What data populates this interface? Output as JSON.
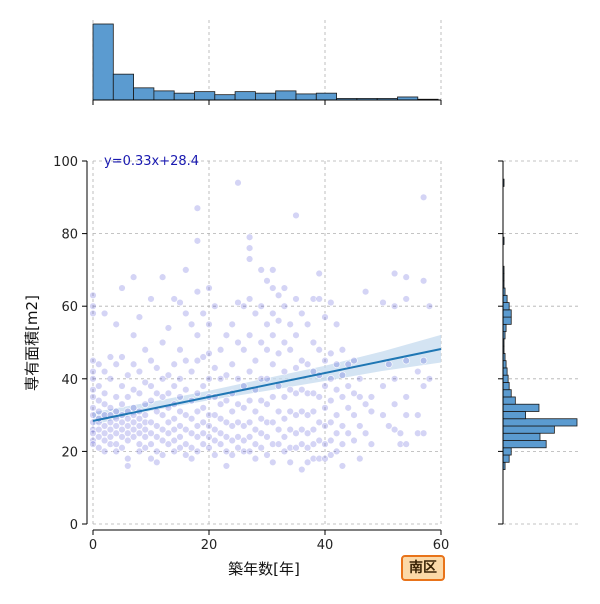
{
  "badge": "南区",
  "accent_colors": {
    "hist_fill": "#5b9bd0",
    "hist_edge": "#1a1a1a",
    "point": "#3a3ad0",
    "regression_line": "#1f77b4",
    "ci_band": "#c6dbef",
    "equation_text": "#1a1ab0",
    "badge_border": "#e8731a",
    "badge_fill": "#fbd9a8"
  },
  "chart_data": {
    "type": "scatter",
    "xlabel": "築年数[年]",
    "ylabel": "専有面積[m2]",
    "xlim": [
      0,
      60
    ],
    "ylim": [
      0,
      100
    ],
    "xticks": [
      0,
      20,
      40,
      60
    ],
    "yticks": [
      0,
      20,
      40,
      60,
      80,
      100
    ],
    "grid": true,
    "regression": {
      "label": "y=0.33x+28.4",
      "slope": 0.33,
      "intercept": 28.4,
      "ci_low": [
        [
          0,
          27.3
        ],
        [
          10,
          31.2
        ],
        [
          20,
          34.1
        ],
        [
          30,
          36.7
        ],
        [
          40,
          39.4
        ],
        [
          50,
          42.2
        ],
        [
          60,
          44.5
        ]
      ],
      "ci_high": [
        [
          0,
          30.8
        ],
        [
          10,
          33.6
        ],
        [
          20,
          36.7
        ],
        [
          30,
          40.2
        ],
        [
          40,
          43.6
        ],
        [
          50,
          47.6
        ],
        [
          60,
          52.1
        ]
      ]
    },
    "points": [
      [
        0,
        63
      ],
      [
        0,
        60
      ],
      [
        0,
        58
      ],
      [
        0,
        45
      ],
      [
        0,
        42
      ],
      [
        0,
        40
      ],
      [
        0,
        37
      ],
      [
        0,
        35
      ],
      [
        0,
        32
      ],
      [
        0,
        30
      ],
      [
        0,
        28
      ],
      [
        0,
        26
      ],
      [
        0,
        25
      ],
      [
        0,
        23
      ],
      [
        0,
        22
      ],
      [
        1,
        44
      ],
      [
        1,
        34
      ],
      [
        1,
        31
      ],
      [
        1,
        28
      ],
      [
        1,
        26
      ],
      [
        1,
        24
      ],
      [
        1,
        21
      ],
      [
        1,
        38
      ],
      [
        1,
        29
      ],
      [
        2,
        58
      ],
      [
        2,
        42
      ],
      [
        2,
        33
      ],
      [
        2,
        30
      ],
      [
        2,
        27
      ],
      [
        2,
        25
      ],
      [
        2,
        23
      ],
      [
        2,
        20
      ],
      [
        2,
        36
      ],
      [
        3,
        46
      ],
      [
        3,
        40
      ],
      [
        3,
        32
      ],
      [
        3,
        28
      ],
      [
        3,
        26
      ],
      [
        3,
        24
      ],
      [
        3,
        22
      ],
      [
        3,
        30
      ],
      [
        4,
        55
      ],
      [
        4,
        44
      ],
      [
        4,
        35
      ],
      [
        4,
        31
      ],
      [
        4,
        29
      ],
      [
        4,
        27
      ],
      [
        4,
        25
      ],
      [
        4,
        22
      ],
      [
        4,
        20
      ],
      [
        5,
        65
      ],
      [
        5,
        46
      ],
      [
        5,
        38
      ],
      [
        5,
        33
      ],
      [
        5,
        30
      ],
      [
        5,
        28
      ],
      [
        5,
        26
      ],
      [
        5,
        24
      ],
      [
        5,
        21
      ],
      [
        6,
        41
      ],
      [
        6,
        35
      ],
      [
        6,
        31
      ],
      [
        6,
        29
      ],
      [
        6,
        27
      ],
      [
        6,
        25
      ],
      [
        6,
        23
      ],
      [
        6,
        18
      ],
      [
        6,
        16
      ],
      [
        7,
        68
      ],
      [
        7,
        52
      ],
      [
        7,
        44
      ],
      [
        7,
        37
      ],
      [
        7,
        32
      ],
      [
        7,
        30
      ],
      [
        7,
        28
      ],
      [
        7,
        26
      ],
      [
        7,
        24
      ],
      [
        8,
        57
      ],
      [
        8,
        42
      ],
      [
        8,
        36
      ],
      [
        8,
        31
      ],
      [
        8,
        29
      ],
      [
        8,
        27
      ],
      [
        8,
        25
      ],
      [
        8,
        22
      ],
      [
        8,
        20
      ],
      [
        9,
        48
      ],
      [
        9,
        39
      ],
      [
        9,
        33
      ],
      [
        9,
        30
      ],
      [
        9,
        28
      ],
      [
        9,
        26
      ],
      [
        9,
        24
      ],
      [
        9,
        21
      ],
      [
        10,
        62
      ],
      [
        10,
        45
      ],
      [
        10,
        38
      ],
      [
        10,
        34
      ],
      [
        10,
        28
      ],
      [
        10,
        25
      ],
      [
        10,
        18
      ],
      [
        10,
        22
      ],
      [
        11,
        43
      ],
      [
        11,
        36
      ],
      [
        11,
        31
      ],
      [
        11,
        27
      ],
      [
        11,
        24
      ],
      [
        11,
        20
      ],
      [
        11,
        17
      ],
      [
        12,
        68
      ],
      [
        12,
        50
      ],
      [
        12,
        40
      ],
      [
        12,
        35
      ],
      [
        12,
        30
      ],
      [
        12,
        26
      ],
      [
        12,
        23
      ],
      [
        12,
        19
      ],
      [
        13,
        54
      ],
      [
        13,
        41
      ],
      [
        13,
        36
      ],
      [
        13,
        32
      ],
      [
        13,
        28
      ],
      [
        13,
        25
      ],
      [
        13,
        22
      ],
      [
        14,
        62
      ],
      [
        14,
        44
      ],
      [
        14,
        38
      ],
      [
        14,
        33
      ],
      [
        14,
        29
      ],
      [
        14,
        26
      ],
      [
        14,
        23
      ],
      [
        14,
        20
      ],
      [
        15,
        61
      ],
      [
        15,
        48
      ],
      [
        15,
        40
      ],
      [
        15,
        35
      ],
      [
        15,
        31
      ],
      [
        15,
        27
      ],
      [
        15,
        24
      ],
      [
        15,
        21
      ],
      [
        16,
        70
      ],
      [
        16,
        58
      ],
      [
        16,
        45
      ],
      [
        16,
        37
      ],
      [
        16,
        30
      ],
      [
        16,
        26
      ],
      [
        16,
        22
      ],
      [
        16,
        19
      ],
      [
        17,
        55
      ],
      [
        17,
        42
      ],
      [
        17,
        34
      ],
      [
        17,
        29
      ],
      [
        17,
        25
      ],
      [
        17,
        21
      ],
      [
        17,
        18
      ],
      [
        18,
        87
      ],
      [
        18,
        78
      ],
      [
        18,
        64
      ],
      [
        18,
        52
      ],
      [
        18,
        45
      ],
      [
        18,
        36
      ],
      [
        18,
        31
      ],
      [
        18,
        27
      ],
      [
        18,
        24
      ],
      [
        18,
        20
      ],
      [
        19,
        58
      ],
      [
        19,
        46
      ],
      [
        19,
        38
      ],
      [
        19,
        32
      ],
      [
        19,
        28
      ],
      [
        19,
        25
      ],
      [
        19,
        22
      ],
      [
        20,
        65
      ],
      [
        20,
        55
      ],
      [
        20,
        47
      ],
      [
        20,
        40
      ],
      [
        20,
        35
      ],
      [
        20,
        30
      ],
      [
        20,
        27
      ],
      [
        20,
        24
      ],
      [
        20,
        21
      ],
      [
        21,
        60
      ],
      [
        21,
        43
      ],
      [
        21,
        35
      ],
      [
        21,
        30
      ],
      [
        21,
        26
      ],
      [
        21,
        23
      ],
      [
        21,
        19
      ],
      [
        22,
        48
      ],
      [
        22,
        40
      ],
      [
        22,
        33
      ],
      [
        22,
        29
      ],
      [
        22,
        25
      ],
      [
        22,
        22
      ],
      [
        23,
        52
      ],
      [
        23,
        41
      ],
      [
        23,
        34
      ],
      [
        23,
        28
      ],
      [
        23,
        24
      ],
      [
        23,
        20
      ],
      [
        23,
        16
      ],
      [
        24,
        55
      ],
      [
        24,
        44
      ],
      [
        24,
        36
      ],
      [
        24,
        31
      ],
      [
        24,
        27
      ],
      [
        24,
        23
      ],
      [
        24,
        19
      ],
      [
        25,
        94
      ],
      [
        25,
        61
      ],
      [
        25,
        50
      ],
      [
        25,
        40
      ],
      [
        25,
        33
      ],
      [
        25,
        28
      ],
      [
        25,
        24
      ],
      [
        25,
        21
      ],
      [
        26,
        60
      ],
      [
        26,
        48
      ],
      [
        26,
        38
      ],
      [
        26,
        32
      ],
      [
        26,
        27
      ],
      [
        26,
        23
      ],
      [
        26,
        20
      ],
      [
        27,
        79
      ],
      [
        27,
        76
      ],
      [
        27,
        73
      ],
      [
        27,
        62
      ],
      [
        27,
        52
      ],
      [
        27,
        42
      ],
      [
        27,
        34
      ],
      [
        27,
        28
      ],
      [
        27,
        24
      ],
      [
        27,
        20
      ],
      [
        28,
        58
      ],
      [
        28,
        45
      ],
      [
        28,
        37
      ],
      [
        28,
        31
      ],
      [
        28,
        26
      ],
      [
        28,
        22
      ],
      [
        28,
        18
      ],
      [
        29,
        70
      ],
      [
        29,
        60
      ],
      [
        29,
        50
      ],
      [
        29,
        40
      ],
      [
        29,
        34
      ],
      [
        29,
        29
      ],
      [
        29,
        25
      ],
      [
        29,
        21
      ],
      [
        30,
        67
      ],
      [
        30,
        55
      ],
      [
        30,
        48
      ],
      [
        30,
        40
      ],
      [
        30,
        33
      ],
      [
        30,
        28
      ],
      [
        30,
        24
      ],
      [
        30,
        19
      ],
      [
        31,
        70
      ],
      [
        31,
        65
      ],
      [
        31,
        58
      ],
      [
        31,
        52
      ],
      [
        31,
        44
      ],
      [
        31,
        35
      ],
      [
        31,
        28
      ],
      [
        31,
        22
      ],
      [
        31,
        17
      ],
      [
        32,
        63
      ],
      [
        32,
        56
      ],
      [
        32,
        47
      ],
      [
        32,
        38
      ],
      [
        32,
        31
      ],
      [
        32,
        26
      ],
      [
        32,
        22
      ],
      [
        33,
        65
      ],
      [
        33,
        60
      ],
      [
        33,
        50
      ],
      [
        33,
        42
      ],
      [
        33,
        35
      ],
      [
        33,
        29
      ],
      [
        33,
        24
      ],
      [
        33,
        20
      ],
      [
        34,
        55
      ],
      [
        34,
        48
      ],
      [
        34,
        37
      ],
      [
        34,
        31
      ],
      [
        34,
        26
      ],
      [
        34,
        21
      ],
      [
        34,
        17
      ],
      [
        35,
        85
      ],
      [
        35,
        62
      ],
      [
        35,
        52
      ],
      [
        35,
        43
      ],
      [
        35,
        36
      ],
      [
        35,
        30
      ],
      [
        35,
        25
      ],
      [
        35,
        21
      ],
      [
        36,
        58
      ],
      [
        36,
        45
      ],
      [
        36,
        37
      ],
      [
        36,
        31
      ],
      [
        36,
        26
      ],
      [
        36,
        22
      ],
      [
        36,
        15
      ],
      [
        37,
        55
      ],
      [
        37,
        44
      ],
      [
        37,
        36
      ],
      [
        37,
        30
      ],
      [
        37,
        25
      ],
      [
        37,
        21
      ],
      [
        37,
        17
      ],
      [
        38,
        62
      ],
      [
        38,
        50
      ],
      [
        38,
        42
      ],
      [
        38,
        36
      ],
      [
        38,
        31
      ],
      [
        38,
        26
      ],
      [
        38,
        22
      ],
      [
        38,
        18
      ],
      [
        39,
        69
      ],
      [
        39,
        62
      ],
      [
        39,
        48
      ],
      [
        39,
        41
      ],
      [
        39,
        35
      ],
      [
        39,
        28
      ],
      [
        39,
        23
      ],
      [
        39,
        18
      ],
      [
        40,
        57
      ],
      [
        40,
        45
      ],
      [
        40,
        38
      ],
      [
        40,
        32
      ],
      [
        40,
        27
      ],
      [
        40,
        22
      ],
      [
        40,
        18
      ],
      [
        41,
        61
      ],
      [
        41,
        47
      ],
      [
        41,
        40
      ],
      [
        41,
        34
      ],
      [
        41,
        28
      ],
      [
        41,
        23
      ],
      [
        41,
        19
      ],
      [
        42,
        55
      ],
      [
        42,
        44
      ],
      [
        42,
        37
      ],
      [
        42,
        30
      ],
      [
        42,
        25
      ],
      [
        42,
        20
      ],
      [
        43,
        48
      ],
      [
        43,
        41
      ],
      [
        43,
        35
      ],
      [
        43,
        27
      ],
      [
        43,
        22
      ],
      [
        43,
        16
      ],
      [
        44,
        44
      ],
      [
        44,
        38
      ],
      [
        44,
        32
      ],
      [
        44,
        25
      ],
      [
        45,
        45
      ],
      [
        45,
        36
      ],
      [
        45,
        30
      ],
      [
        45,
        23
      ],
      [
        46,
        40
      ],
      [
        46,
        35
      ],
      [
        46,
        27
      ],
      [
        46,
        18
      ],
      [
        47,
        64
      ],
      [
        47,
        33
      ],
      [
        47,
        25
      ],
      [
        48,
        35
      ],
      [
        48,
        31
      ],
      [
        48,
        22
      ],
      [
        50,
        61
      ],
      [
        50,
        38
      ],
      [
        50,
        30
      ],
      [
        51,
        44
      ],
      [
        51,
        27
      ],
      [
        52,
        69
      ],
      [
        52,
        60
      ],
      [
        52,
        40
      ],
      [
        52,
        33
      ],
      [
        52,
        26
      ],
      [
        53,
        25
      ],
      [
        53,
        22
      ],
      [
        54,
        68
      ],
      [
        54,
        62
      ],
      [
        54,
        45
      ],
      [
        54,
        35
      ],
      [
        54,
        30
      ],
      [
        54,
        22
      ],
      [
        56,
        42
      ],
      [
        56,
        30
      ],
      [
        56,
        25
      ],
      [
        57,
        90
      ],
      [
        57,
        67
      ],
      [
        57,
        45
      ],
      [
        57,
        38
      ],
      [
        57,
        25
      ],
      [
        58,
        60
      ],
      [
        58,
        40
      ]
    ],
    "hist_x": {
      "bin_edges": [
        0,
        3.5,
        7,
        10.5,
        14,
        17.5,
        21,
        24.5,
        28,
        31.5,
        35,
        38.5,
        42,
        45.5,
        49,
        52.5,
        56,
        59.5
      ],
      "counts": [
        100,
        34,
        16,
        12,
        9,
        11,
        7,
        11,
        9,
        12,
        8,
        9,
        2,
        2,
        2,
        4,
        1
      ]
    },
    "hist_y": {
      "bin_edges": [
        15,
        17,
        19,
        21,
        23,
        25,
        27,
        29,
        31,
        33,
        35,
        37,
        39,
        41,
        43,
        45,
        47,
        49,
        51,
        53,
        55,
        57,
        59,
        61,
        63,
        65,
        67,
        69,
        71,
        73,
        75,
        77,
        79,
        81,
        83,
        85,
        87,
        89,
        91,
        93,
        95
      ],
      "counts": [
        2,
        6,
        8,
        42,
        36,
        50,
        72,
        22,
        35,
        12,
        8,
        6,
        5,
        4,
        3,
        2,
        1,
        1,
        2,
        3,
        8,
        8,
        6,
        4,
        2,
        1,
        1,
        1,
        0,
        0,
        0,
        1,
        0,
        0,
        0,
        0,
        0,
        0,
        0,
        1
      ]
    }
  }
}
